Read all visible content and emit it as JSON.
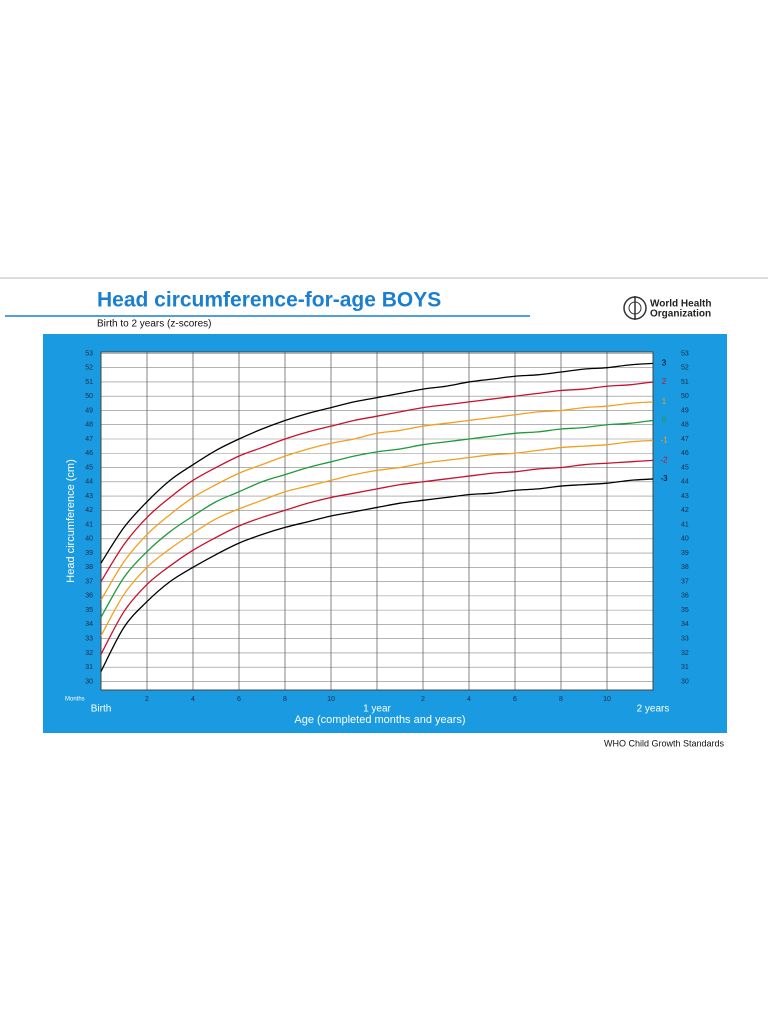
{
  "chart_data": {
    "type": "line",
    "title": "Head circumference-for-age  BOYS",
    "subtitle": "Birth to 2 years (z-scores)",
    "organization": [
      "World Health",
      "Organization"
    ],
    "source": "WHO Child Growth Standards",
    "x_axis_label": "Age (completed months and years)",
    "x_unit_label": "Months",
    "y_axis_label": "Head circumference (cm)",
    "x": [
      0,
      1,
      2,
      3,
      4,
      5,
      6,
      7,
      8,
      9,
      10,
      11,
      12,
      13,
      14,
      15,
      16,
      17,
      18,
      19,
      20,
      21,
      22,
      23,
      24
    ],
    "xlim": [
      0,
      24
    ],
    "xticks": [
      {
        "value": 0,
        "label": "Birth"
      },
      2,
      4,
      6,
      8,
      10,
      {
        "value": 12,
        "label": "1 year"
      },
      {
        "value": 14,
        "label": "2"
      },
      {
        "value": 16,
        "label": "4"
      },
      {
        "value": 18,
        "label": "6"
      },
      {
        "value": 20,
        "label": "8"
      },
      {
        "value": 22,
        "label": "10"
      },
      {
        "value": 24,
        "label": "2 years"
      }
    ],
    "ylim": [
      29.4,
      53.1
    ],
    "yticks": [
      30,
      31,
      32,
      33,
      34,
      35,
      36,
      37,
      38,
      39,
      40,
      41,
      42,
      43,
      44,
      45,
      46,
      47,
      48,
      49,
      50,
      51,
      52,
      53
    ],
    "grid": true,
    "series": [
      {
        "name": "3",
        "color": "#000000",
        "values": [
          38.3,
          40.8,
          42.6,
          44.1,
          45.2,
          46.2,
          47.0,
          47.7,
          48.3,
          48.8,
          49.2,
          49.6,
          49.9,
          50.2,
          50.5,
          50.7,
          51.0,
          51.2,
          51.4,
          51.5,
          51.7,
          51.9,
          52.0,
          52.2,
          52.3
        ]
      },
      {
        "name": "2",
        "color": "#c8102e",
        "values": [
          37.0,
          39.6,
          41.5,
          42.9,
          44.1,
          45.0,
          45.8,
          46.4,
          47.0,
          47.5,
          47.9,
          48.3,
          48.6,
          48.9,
          49.2,
          49.4,
          49.6,
          49.8,
          50.0,
          50.2,
          50.4,
          50.5,
          50.7,
          50.8,
          51.0
        ]
      },
      {
        "name": "1",
        "color": "#f0a020",
        "values": [
          35.7,
          38.4,
          40.3,
          41.7,
          42.9,
          43.8,
          44.6,
          45.2,
          45.8,
          46.3,
          46.7,
          47.0,
          47.4,
          47.6,
          47.9,
          48.1,
          48.3,
          48.5,
          48.7,
          48.9,
          49.0,
          49.2,
          49.3,
          49.5,
          49.6
        ]
      },
      {
        "name": "0",
        "color": "#1e9a3a",
        "values": [
          34.5,
          37.3,
          39.1,
          40.5,
          41.6,
          42.6,
          43.3,
          44.0,
          44.5,
          45.0,
          45.4,
          45.8,
          46.1,
          46.3,
          46.6,
          46.8,
          47.0,
          47.2,
          47.4,
          47.5,
          47.7,
          47.8,
          48.0,
          48.1,
          48.3
        ]
      },
      {
        "name": "-1",
        "color": "#f0a020",
        "values": [
          33.2,
          36.1,
          38.0,
          39.3,
          40.4,
          41.4,
          42.1,
          42.7,
          43.3,
          43.7,
          44.1,
          44.5,
          44.8,
          45.0,
          45.3,
          45.5,
          45.7,
          45.9,
          46.0,
          46.2,
          46.4,
          46.5,
          46.6,
          46.8,
          46.9
        ]
      },
      {
        "name": "-2",
        "color": "#c8102e",
        "values": [
          31.9,
          34.9,
          36.8,
          38.1,
          39.2,
          40.1,
          40.9,
          41.5,
          42.0,
          42.5,
          42.9,
          43.2,
          43.5,
          43.8,
          44.0,
          44.2,
          44.4,
          44.6,
          44.7,
          44.9,
          45.0,
          45.2,
          45.3,
          45.4,
          45.5
        ]
      },
      {
        "name": "-3",
        "color": "#000000",
        "values": [
          30.7,
          33.8,
          35.6,
          37.0,
          38.0,
          38.9,
          39.7,
          40.3,
          40.8,
          41.2,
          41.6,
          41.9,
          42.2,
          42.5,
          42.7,
          42.9,
          43.1,
          43.2,
          43.4,
          43.5,
          43.7,
          43.8,
          43.9,
          44.1,
          44.2
        ]
      }
    ]
  }
}
